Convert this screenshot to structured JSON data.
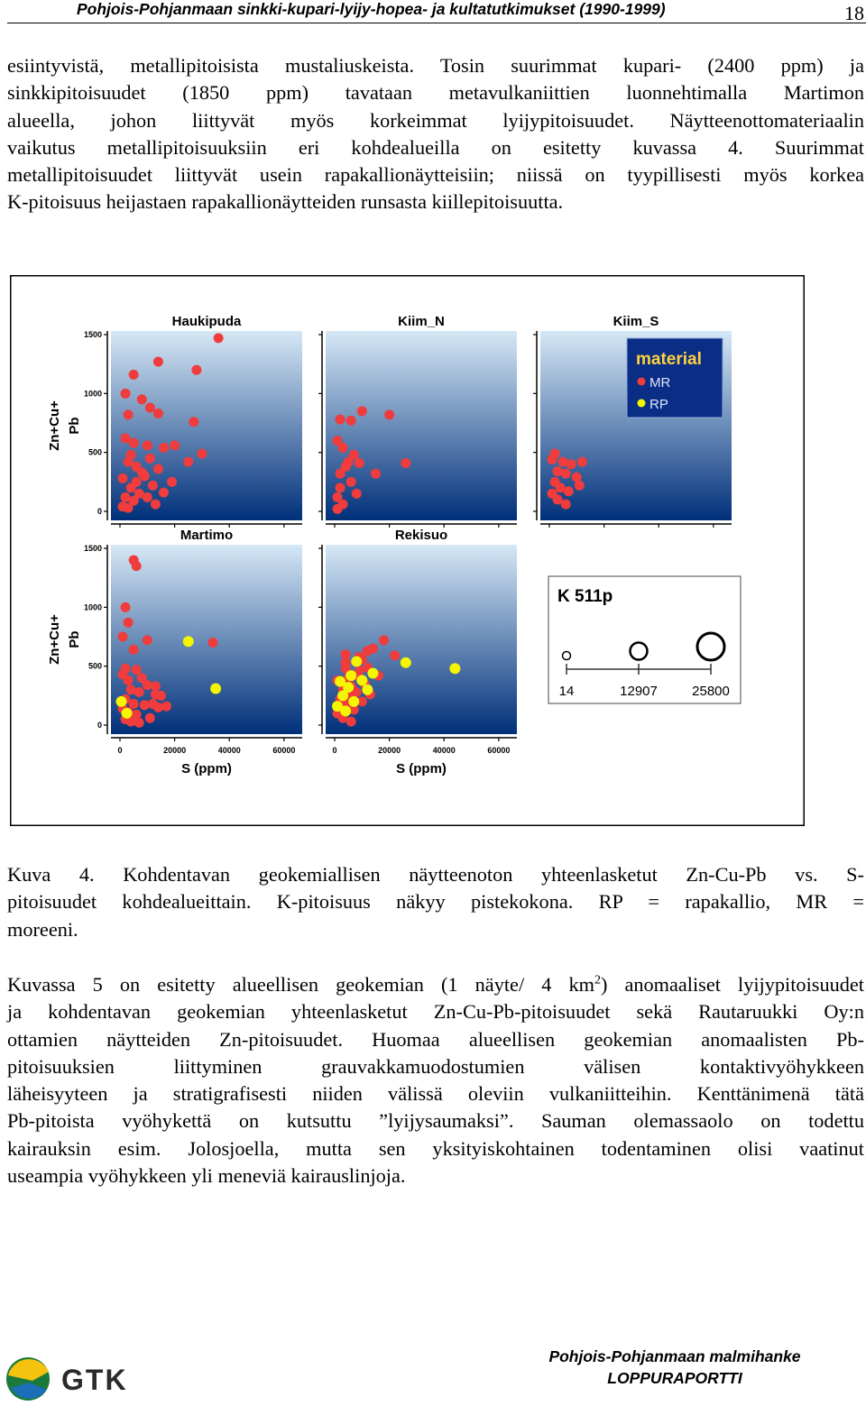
{
  "header": {
    "title": "Pohjois-Pohjanmaan sinkki-kupari-lyijy-hopea- ja kultatutkimukset (1990-1999)",
    "page_number": "18"
  },
  "paragraph1": {
    "lines": [
      "esiintyvistä, metallipitoisista mustaliuskeista. Tosin suurimmat  kupari- (2400 ppm) ja",
      "sinkkipitoisuudet (1850 ppm) tavataan metavulkaniittien luonnehtimalla Martimon",
      "alueella, johon liittyvät myös korkeimmat lyijypitoisuudet. Näytteenottomateriaalin",
      "vaikutus metallipitoisuuksiin eri kohdealueilla on esitetty kuvassa 4. Suurimmat",
      "metallipitoisuudet liittyvät usein rapakallionäytteisiin; niissä on tyypillisesti myös korkea",
      "K-pitoisuus heijastaen rapakallionäytteiden runsasta kiillepitoisuutta."
    ]
  },
  "figure": {
    "y_axis_label_line1": "Zn+Cu+",
    "y_axis_label_line2": "Pb",
    "x_axis_label": "S (ppm)",
    "y_ticks": [
      "1500",
      "1000",
      "500",
      "0"
    ],
    "x_ticks": [
      "0",
      "20000",
      "40000",
      "60000"
    ],
    "legend_title": "material",
    "legend_items": [
      {
        "label": "MR",
        "color": "#f03c3c"
      },
      {
        "label": "RP",
        "color": "#f5f500"
      }
    ],
    "size_legend": {
      "title": "K 511p",
      "values": [
        "14",
        "12907",
        "25800"
      ]
    },
    "colors": {
      "panel_top": "#d6e8f6",
      "panel_bottom": "#00307a",
      "mr": "#f03c3c",
      "rp": "#f5f500"
    }
  },
  "chart_data": [
    {
      "type": "scatter",
      "title": "Haukipuda",
      "xlabel": "",
      "ylabel": "Zn+Cu+ Pb",
      "xlim": [
        0,
        65000
      ],
      "ylim": [
        0,
        1500
      ],
      "series": [
        {
          "name": "MR",
          "points": [
            [
              36000,
              1470
            ],
            [
              14000,
              1270
            ],
            [
              5000,
              1160
            ],
            [
              28000,
              1200
            ],
            [
              2000,
              1000
            ],
            [
              8000,
              950
            ],
            [
              11000,
              880
            ],
            [
              14000,
              830
            ],
            [
              3000,
              820
            ],
            [
              27000,
              760
            ],
            [
              2000,
              620
            ],
            [
              5000,
              580
            ],
            [
              10000,
              560
            ],
            [
              16000,
              540
            ],
            [
              20000,
              560
            ],
            [
              30000,
              490
            ],
            [
              25000,
              420
            ],
            [
              14000,
              360
            ],
            [
              8000,
              330
            ],
            [
              19000,
              250
            ],
            [
              3000,
              420
            ],
            [
              6000,
              380
            ],
            [
              9000,
              300
            ],
            [
              1000,
              280
            ],
            [
              4000,
              200
            ],
            [
              7000,
              150
            ],
            [
              12000,
              220
            ],
            [
              2000,
              120
            ],
            [
              5000,
              90
            ],
            [
              10000,
              120
            ],
            [
              13000,
              60
            ],
            [
              1000,
              40
            ],
            [
              3000,
              30
            ],
            [
              16000,
              160
            ],
            [
              4000,
              480
            ],
            [
              11000,
              450
            ],
            [
              6000,
              250
            ]
          ]
        }
      ]
    },
    {
      "type": "scatter",
      "title": "Kiim_N",
      "xlabel": "",
      "ylabel": "",
      "xlim": [
        0,
        65000
      ],
      "ylim": [
        0,
        1500
      ],
      "series": [
        {
          "name": "MR",
          "points": [
            [
              10000,
              850
            ],
            [
              6000,
              770
            ],
            [
              20000,
              820
            ],
            [
              2000,
              780
            ],
            [
              1000,
              600
            ],
            [
              3000,
              540
            ],
            [
              5000,
              420
            ],
            [
              2000,
              320
            ],
            [
              6000,
              250
            ],
            [
              8000,
              150
            ],
            [
              1000,
              120
            ],
            [
              3000,
              60
            ],
            [
              4000,
              380
            ],
            [
              7000,
              480
            ],
            [
              2000,
              200
            ],
            [
              15000,
              320
            ],
            [
              9000,
              410
            ],
            [
              26000,
              410
            ],
            [
              1000,
              20
            ]
          ]
        }
      ]
    },
    {
      "type": "scatter",
      "title": "Kiim_S",
      "xlabel": "",
      "ylabel": "",
      "xlim": [
        0,
        65000
      ],
      "ylim": [
        0,
        1500
      ],
      "series": [
        {
          "name": "MR",
          "points": [
            [
              2000,
              490
            ],
            [
              1000,
              440
            ],
            [
              5000,
              420
            ],
            [
              8000,
              400
            ],
            [
              3000,
              340
            ],
            [
              6000,
              320
            ],
            [
              10000,
              290
            ],
            [
              2000,
              250
            ],
            [
              4000,
              200
            ],
            [
              7000,
              170
            ],
            [
              1000,
              150
            ],
            [
              3000,
              100
            ],
            [
              6000,
              60
            ],
            [
              11000,
              220
            ],
            [
              12000,
              420
            ]
          ]
        }
      ]
    },
    {
      "type": "scatter",
      "title": "Martimo",
      "xlabel": "S (ppm)",
      "ylabel": "Zn+Cu+ Pb",
      "xlim": [
        0,
        65000
      ],
      "ylim": [
        0,
        1500
      ],
      "series": [
        {
          "name": "MR",
          "points": [
            [
              5000,
              1400
            ],
            [
              6000,
              1350
            ],
            [
              2000,
              1000
            ],
            [
              3000,
              870
            ],
            [
              1000,
              750
            ],
            [
              10000,
              720
            ],
            [
              5000,
              640
            ],
            [
              2000,
              480
            ],
            [
              6000,
              470
            ],
            [
              1000,
              430
            ],
            [
              8000,
              400
            ],
            [
              3000,
              380
            ],
            [
              10000,
              340
            ],
            [
              4000,
              300
            ],
            [
              7000,
              280
            ],
            [
              13000,
              260
            ],
            [
              2000,
              220
            ],
            [
              5000,
              180
            ],
            [
              9000,
              170
            ],
            [
              1000,
              140
            ],
            [
              3000,
              110
            ],
            [
              6000,
              90
            ],
            [
              11000,
              60
            ],
            [
              2000,
              50
            ],
            [
              4000,
              30
            ],
            [
              7000,
              20
            ],
            [
              34000,
              700
            ],
            [
              14000,
              150
            ],
            [
              17000,
              160
            ],
            [
              13000,
              330
            ],
            [
              12000,
              180
            ],
            [
              15000,
              250
            ]
          ]
        },
        {
          "name": "RP",
          "points": [
            [
              25000,
              710
            ],
            [
              35000,
              310
            ],
            [
              500,
              200
            ],
            [
              2500,
              100
            ]
          ]
        }
      ]
    },
    {
      "type": "scatter",
      "title": "Rekisuo",
      "xlabel": "S (ppm)",
      "ylabel": "",
      "xlim": [
        0,
        65000
      ],
      "ylim": [
        0,
        1500
      ],
      "series": [
        {
          "name": "MR",
          "points": [
            [
              18000,
              720
            ],
            [
              14000,
              650
            ],
            [
              12000,
              630
            ],
            [
              22000,
              590
            ],
            [
              4000,
              600
            ],
            [
              9000,
              580
            ],
            [
              10000,
              560
            ],
            [
              4000,
              530
            ],
            [
              12000,
              490
            ],
            [
              9000,
              460
            ],
            [
              16000,
              420
            ],
            [
              4000,
              480
            ],
            [
              7000,
              420
            ],
            [
              11000,
              350
            ],
            [
              6000,
              330
            ],
            [
              1000,
              380
            ],
            [
              3000,
              300
            ],
            [
              8000,
              280
            ],
            [
              5000,
              240
            ],
            [
              2000,
              220
            ],
            [
              10000,
              200
            ],
            [
              4000,
              170
            ],
            [
              7000,
              130
            ],
            [
              1000,
              100
            ],
            [
              3000,
              60
            ],
            [
              6000,
              30
            ],
            [
              13000,
              260
            ],
            [
              5000,
              400
            ]
          ]
        },
        {
          "name": "RP",
          "points": [
            [
              26000,
              530
            ],
            [
              44000,
              480
            ],
            [
              14000,
              440
            ],
            [
              8000,
              540
            ],
            [
              2000,
              370
            ],
            [
              5000,
              320
            ],
            [
              12000,
              300
            ],
            [
              3000,
              250
            ],
            [
              7000,
              200
            ],
            [
              1000,
              160
            ],
            [
              10000,
              380
            ],
            [
              6000,
              420
            ],
            [
              4000,
              120
            ]
          ]
        }
      ]
    }
  ],
  "caption": {
    "lines": [
      "Kuva 4. Kohdentavan geokemiallisen näytteenoton yhteenlasketut Zn-Cu-Pb vs. S-",
      "pitoisuudet kohdealueittain. K-pitoisuus näkyy pistekokona. RP = rapakallio, MR =",
      "moreeni."
    ]
  },
  "paragraph2": {
    "line1_a": "Kuvassa 5 on esitetty alueellisen geokemian (1 näyte/ 4 km",
    "line1_sup": "2",
    "line1_b": ") anomaaliset lyijypitoisuudet",
    "lines": [
      "ja kohdentavan geokemian yhteenlasketut Zn-Cu-Pb-pitoisuudet sekä Rautaruukki Oy:n",
      "ottamien näytteiden  Zn-pitoisuudet. Huomaa alueellisen geokemian anomaalisten Pb-",
      "pitoisuuksien liittyminen grauvakkamuodostumien välisen kontaktivyöhykkeen",
      "läheisyyteen ja stratigrafisesti niiden välissä oleviin vulkaniitteihin. Kenttänimenä tätä",
      "Pb-pitoista vyöhykettä on kutsuttu ”lyijysaumaksi”. Sauman olemassaolo on todettu",
      "kairauksin esim. Jolosjoella, mutta sen yksityiskohtainen todentaminen olisi vaatinut",
      "useampia vyöhykkeen yli meneviä kairauslinjoja."
    ]
  },
  "footer": {
    "line1": "Pohjois-Pohjanmaan malmihanke",
    "line2": "LOPPURAPORTTI",
    "logo_text": "GTK"
  }
}
